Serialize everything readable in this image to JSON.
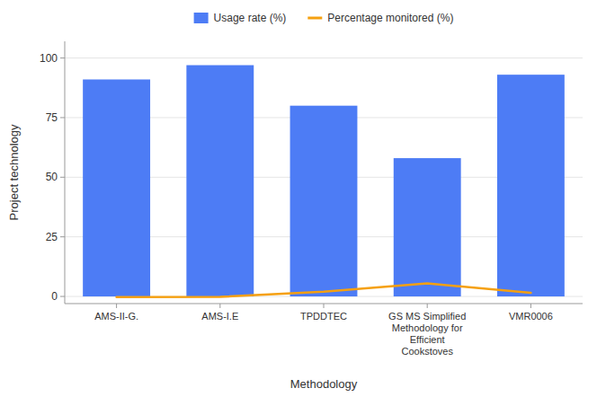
{
  "chart_data": {
    "type": "bar",
    "categories": [
      "AMS-II-G.",
      "AMS-I.E",
      "TPDDTEC",
      "GS MS Simplified\nMethodology for\nEfficient\nCookstoves",
      "VMR0006"
    ],
    "series": [
      {
        "name": "Usage rate (%)",
        "type": "bar",
        "color": "#4d7cf5",
        "values": [
          91,
          97,
          80,
          58,
          93
        ]
      },
      {
        "name": "Percentage monitored (%)",
        "type": "line",
        "color": "#f5a010",
        "values": [
          -0.3,
          -0.2,
          2.0,
          5.5,
          1.5
        ]
      }
    ],
    "xlabel": "Methodology",
    "ylabel": "Project technology",
    "ylim": [
      -3,
      107
    ],
    "yticks": [
      0,
      25,
      50,
      75,
      100
    ],
    "grid": true,
    "legend": "top"
  }
}
